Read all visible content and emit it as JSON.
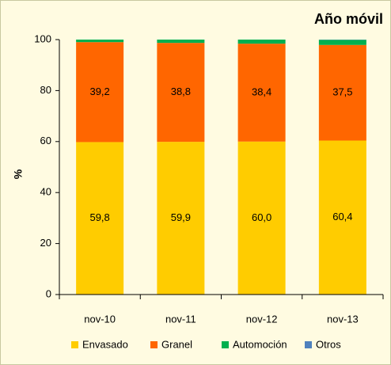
{
  "chart_data": {
    "type": "stacked_bar",
    "title": "Año móvil",
    "y_label": "%",
    "categories": [
      "nov-10",
      "nov-11",
      "nov-12",
      "nov-13"
    ],
    "series": [
      {
        "name": "Envasado",
        "color": "#ffcc00",
        "values": [
          59.8,
          59.9,
          60.0,
          60.4
        ],
        "value_labels": [
          "59,8",
          "59,9",
          "60,0",
          "60,4"
        ]
      },
      {
        "name": "Granel",
        "color": "#ff6600",
        "values": [
          39.2,
          38.8,
          38.4,
          37.5
        ],
        "value_labels": [
          "39,2",
          "38,8",
          "38,4",
          "37,5"
        ]
      },
      {
        "name": "Automoción",
        "color": "#00b050",
        "values": [
          1.0,
          1.3,
          1.6,
          2.0
        ]
      },
      {
        "name": "Otros",
        "color": "#4f81bd",
        "values": [
          0.0,
          0.0,
          0.0,
          0.1
        ]
      }
    ],
    "ylim": [
      0,
      100
    ],
    "yticks": [
      0,
      20,
      40,
      60,
      80,
      100
    ],
    "grid": false,
    "legend": "bottom"
  }
}
